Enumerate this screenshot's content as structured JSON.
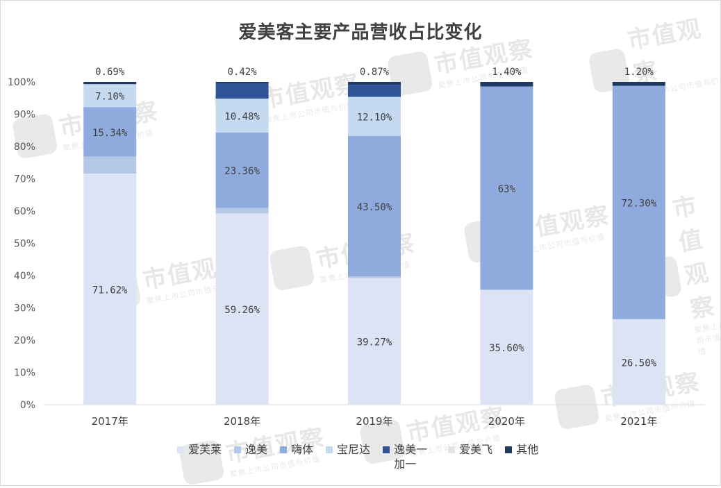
{
  "watermark": {
    "main": "市值观察",
    "sub": "聚焦上市公司市值与价值"
  },
  "chart_data": {
    "type": "bar",
    "stacked": true,
    "title": "爱美客主要产品营收占比变化",
    "xlabel": "",
    "ylabel": "",
    "ylim": [
      0,
      100
    ],
    "y_ticks": [
      "0%",
      "10%",
      "20%",
      "30%",
      "40%",
      "50%",
      "60%",
      "70%",
      "80%",
      "90%",
      "100%"
    ],
    "grid": false,
    "legend_position": "bottom",
    "categories": [
      "2017年",
      "2018年",
      "2019年",
      "2020年",
      "2021年"
    ],
    "series": [
      {
        "name": "爱芙莱",
        "color": "#dce3f4",
        "values": [
          71.62,
          59.26,
          39.27,
          35.6,
          26.5
        ],
        "labels": [
          "71.62%",
          "59.26%",
          "39.27%",
          "35.60%",
          "26.50%"
        ]
      },
      {
        "name": "逸美",
        "color": "#b4c7e7",
        "values": [
          5.25,
          1.72,
          0.5,
          0,
          0
        ],
        "labels": [
          "",
          "",
          "",
          "",
          ""
        ]
      },
      {
        "name": "嗨体",
        "color": "#8faadc",
        "values": [
          15.34,
          23.36,
          43.5,
          63.0,
          72.3
        ],
        "labels": [
          "15.34%",
          "23.36%",
          "43.50%",
          "63%",
          "72.30%"
        ]
      },
      {
        "name": "宝尼达",
        "color": "#c5d9f1",
        "values": [
          7.1,
          10.48,
          12.1,
          0,
          0
        ],
        "labels": [
          "7.10%",
          "10.48%",
          "12.10%",
          "",
          ""
        ]
      },
      {
        "name": "逸美一加一",
        "color": "#2f5597",
        "values": [
          0,
          4.76,
          3.76,
          0,
          0
        ],
        "labels": [
          "",
          "",
          "",
          "",
          ""
        ]
      },
      {
        "name": "爱美飞",
        "color": "#e7e6e6",
        "values": [
          0,
          0,
          0,
          0,
          0
        ],
        "labels": [
          "",
          "",
          "",
          "",
          ""
        ]
      },
      {
        "name": "其他",
        "color": "#1f3864",
        "values": [
          0.69,
          0.42,
          0.87,
          1.4,
          1.2
        ],
        "labels": [
          "0.69%",
          "0.42%",
          "0.87%",
          "1.40%",
          "1.20%"
        ]
      }
    ]
  }
}
